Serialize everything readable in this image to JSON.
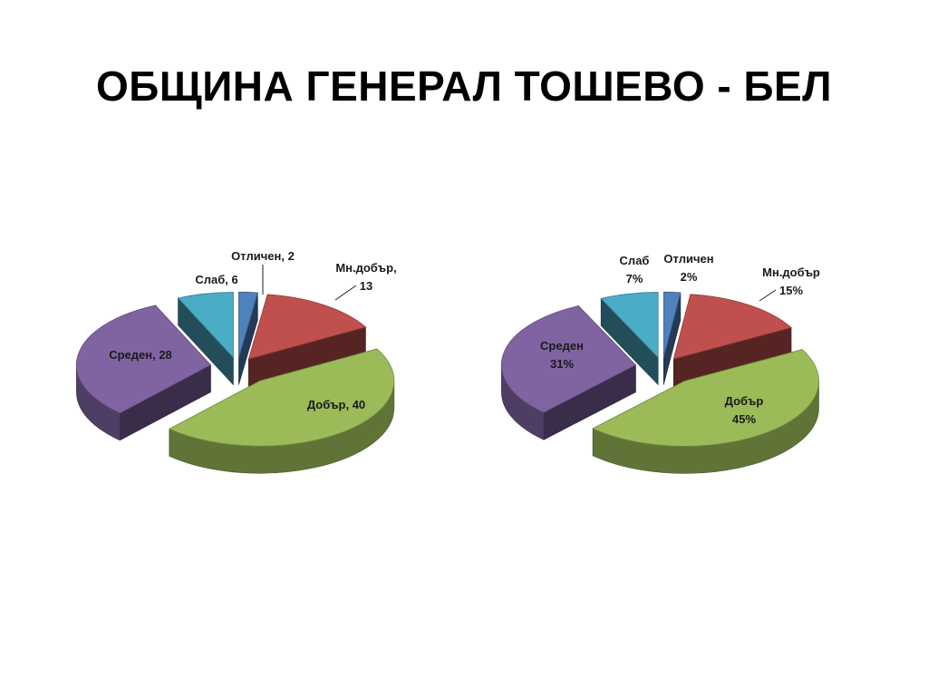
{
  "slide": {
    "title": "ОБЩИНА ГЕНЕРАЛ ТОШЕВО - БЕЛ"
  },
  "colors": {
    "Отличен": "#4F81BD",
    "Мн.добър": "#C0504D",
    "Добър": "#9BBB59",
    "Среден": "#8064A2",
    "Слаб": "#4BACC6"
  },
  "chart_data": [
    {
      "type": "pie",
      "style": "3d-exploded",
      "categories": [
        "Отличен",
        "Мн.добър",
        "Добър",
        "Среден",
        "Слаб"
      ],
      "values": [
        2,
        13,
        40,
        28,
        6
      ],
      "data_labels": [
        [
          "Отличен, 2"
        ],
        [
          "Мн.добър,",
          "13"
        ],
        [
          "Добър, 40"
        ],
        [
          "Среден, 28"
        ],
        [
          "Слаб, 6"
        ]
      ]
    },
    {
      "type": "pie",
      "style": "3d-exploded",
      "categories": [
        "Отличен",
        "Мн.добър",
        "Добър",
        "Среден",
        "Слаб"
      ],
      "values": [
        2,
        15,
        45,
        31,
        7
      ],
      "unit": "%",
      "data_labels": [
        [
          "Отличен",
          "2%"
        ],
        [
          "Мн.добър",
          "15%"
        ],
        [
          "Добър",
          "45%"
        ],
        [
          "Среден",
          "31%"
        ],
        [
          "Слаб",
          "7%"
        ]
      ]
    }
  ]
}
